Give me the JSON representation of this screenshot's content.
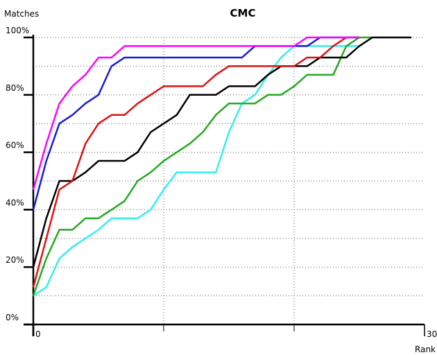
{
  "chart_data": {
    "type": "line",
    "title": "CMC",
    "ylabel": "Matches",
    "xlabel": "Rank",
    "x": [
      0,
      1,
      2,
      3,
      4,
      5,
      6,
      7,
      8,
      9,
      10,
      11,
      12,
      13,
      14,
      15,
      16,
      17,
      18,
      19,
      20,
      21,
      22,
      23,
      24,
      25,
      26,
      27,
      28,
      29
    ],
    "xlim": [
      0,
      30
    ],
    "ylim": [
      0,
      100
    ],
    "xticks": [
      0,
      {
        "value": 10,
        "label": null
      },
      {
        "value": 20,
        "label": null
      },
      30
    ],
    "yticks": [
      {
        "value": 0,
        "label": "0%"
      },
      {
        "value": 10,
        "label": null
      },
      {
        "value": 20,
        "label": "20%"
      },
      {
        "value": 30,
        "label": null
      },
      {
        "value": 40,
        "label": "40%"
      },
      {
        "value": 50,
        "label": null
      },
      {
        "value": 60,
        "label": "60%"
      },
      {
        "value": 70,
        "label": null
      },
      {
        "value": 80,
        "label": "80%"
      },
      {
        "value": 90,
        "label": null
      },
      {
        "value": 100,
        "label": "100%"
      }
    ],
    "grid": true,
    "series": [
      {
        "color": "#33eeee",
        "values": [
          10,
          13,
          23,
          27,
          30,
          33,
          37,
          37,
          37,
          40,
          47,
          53,
          53,
          53,
          53,
          67,
          77,
          80,
          87,
          93,
          97,
          97,
          97,
          97,
          97,
          97,
          null,
          null,
          null,
          null
        ]
      },
      {
        "color": "#22aa22",
        "values": [
          10,
          23,
          33,
          33,
          37,
          37,
          40,
          43,
          50,
          53,
          57,
          60,
          63,
          67,
          73,
          77,
          77,
          77,
          80,
          80,
          83,
          87,
          87,
          87,
          97,
          100,
          100,
          null,
          null,
          null
        ]
      },
      {
        "color": "#000000",
        "values": [
          20,
          37,
          50,
          50,
          53,
          57,
          57,
          57,
          60,
          67,
          70,
          73,
          80,
          80,
          80,
          83,
          83,
          83,
          87,
          90,
          90,
          90,
          93,
          93,
          93,
          97,
          100,
          100,
          100,
          100
        ]
      },
      {
        "color": "#e01010",
        "values": [
          13,
          30,
          47,
          50,
          63,
          70,
          73,
          73,
          77,
          80,
          83,
          83,
          83,
          83,
          87,
          90,
          90,
          90,
          90,
          90,
          90,
          93,
          93,
          97,
          100,
          100,
          null,
          null,
          null,
          null
        ]
      },
      {
        "color": "#1a1adc",
        "values": [
          40,
          57,
          70,
          73,
          77,
          80,
          90,
          93,
          93,
          93,
          93,
          93,
          93,
          93,
          93,
          93,
          93,
          97,
          97,
          97,
          97,
          97,
          100,
          100,
          100,
          100,
          null,
          null,
          null,
          null
        ]
      },
      {
        "color": "#ff00ff",
        "values": [
          47,
          63,
          77,
          83,
          87,
          93,
          93,
          97,
          97,
          97,
          97,
          97,
          97,
          97,
          97,
          97,
          97,
          97,
          97,
          97,
          97,
          100,
          100,
          100,
          100,
          100,
          null,
          null,
          null,
          null
        ]
      }
    ]
  }
}
